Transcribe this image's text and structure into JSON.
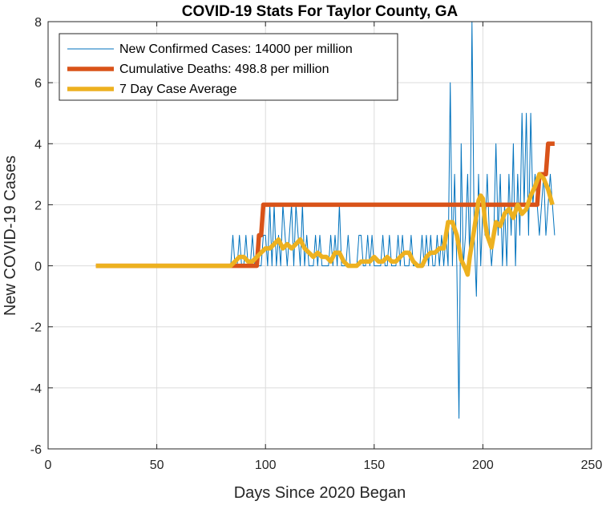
{
  "chart_data": {
    "type": "line",
    "title": "COVID-19 Stats For Taylor County, GA",
    "xlabel": "Days Since 2020 Began",
    "ylabel": "New COVID-19 Cases",
    "xlim": [
      0,
      250
    ],
    "ylim": [
      -6,
      8
    ],
    "xticks": [
      0,
      50,
      100,
      150,
      200,
      250
    ],
    "yticks": [
      -6,
      -4,
      -2,
      0,
      2,
      4,
      6,
      8
    ],
    "grid": true,
    "legend_position": "top-left",
    "series": [
      {
        "name": "New Confirmed Cases: 14000 per million",
        "color": "#0072BD",
        "x": [
          22,
          84,
          85,
          86,
          87,
          88,
          89,
          90,
          91,
          92,
          93,
          94,
          95,
          96,
          97,
          98,
          99,
          100,
          101,
          102,
          103,
          104,
          105,
          106,
          107,
          108,
          109,
          110,
          111,
          112,
          113,
          114,
          115,
          116,
          117,
          118,
          119,
          120,
          121,
          122,
          123,
          124,
          125,
          126,
          127,
          128,
          129,
          130,
          131,
          132,
          133,
          134,
          135,
          136,
          137,
          138,
          139,
          140,
          141,
          142,
          143,
          144,
          145,
          146,
          147,
          148,
          149,
          150,
          151,
          152,
          153,
          154,
          155,
          156,
          157,
          158,
          159,
          160,
          161,
          162,
          163,
          164,
          165,
          166,
          167,
          168,
          169,
          170,
          171,
          172,
          173,
          174,
          175,
          176,
          177,
          178,
          179,
          180,
          181,
          182,
          183,
          184,
          185,
          186,
          187,
          188,
          189,
          190,
          191,
          192,
          193,
          194,
          195,
          196,
          197,
          198,
          199,
          200,
          201,
          202,
          203,
          204,
          205,
          206,
          207,
          208,
          209,
          210,
          211,
          212,
          213,
          214,
          215,
          216,
          217,
          218,
          219,
          220,
          221,
          222,
          223,
          224,
          225,
          226,
          227,
          228,
          229,
          230,
          231,
          232,
          233
        ],
        "y": [
          0,
          0,
          1,
          0,
          0,
          1,
          0,
          0,
          1,
          0,
          0,
          1,
          0,
          0,
          0,
          0,
          1,
          1,
          0,
          2,
          0,
          2,
          0,
          1,
          0,
          2,
          1,
          0,
          1,
          2,
          0,
          2,
          1,
          0,
          2,
          0,
          1,
          0,
          0,
          0,
          1,
          0,
          1,
          0,
          0,
          0,
          0,
          1,
          0,
          1,
          0,
          2,
          0,
          0,
          0,
          1,
          0,
          0,
          0,
          0,
          1,
          1,
          0,
          0,
          1,
          0,
          1,
          0,
          0,
          0,
          0,
          1,
          0,
          0,
          1,
          0,
          0,
          0,
          1,
          0,
          1,
          0,
          0,
          0,
          1,
          0,
          0,
          0,
          0,
          1,
          0,
          1,
          0,
          1,
          0,
          0,
          1,
          0,
          1,
          0,
          1,
          0,
          6,
          0,
          3,
          0,
          -5,
          4,
          0,
          1,
          3,
          0,
          8,
          1,
          -1,
          3,
          0,
          2,
          1,
          3,
          1,
          0,
          1,
          4,
          1,
          3,
          0,
          2,
          0,
          3,
          1,
          4,
          0,
          3,
          1,
          5,
          2,
          5,
          1,
          5,
          2,
          3,
          2,
          1,
          2,
          3,
          1,
          2,
          3,
          2,
          1
        ]
      },
      {
        "name": "Cumulative Deaths: 498.8 per million",
        "color": "#D95319",
        "x": [
          22,
          96,
          97,
          98,
          99,
          225,
          226,
          227,
          228,
          229,
          230,
          233
        ],
        "y": [
          0,
          0,
          1,
          1,
          2,
          2,
          3,
          3,
          3,
          3,
          4,
          4
        ]
      },
      {
        "name": "7 Day Case Average",
        "color": "#EDB120",
        "x": [
          22,
          84,
          86,
          88,
          90,
          92,
          94,
          96,
          98,
          100,
          102,
          104,
          106,
          108,
          110,
          112,
          114,
          116,
          118,
          120,
          122,
          124,
          126,
          128,
          130,
          132,
          134,
          136,
          138,
          140,
          142,
          144,
          146,
          148,
          150,
          152,
          154,
          156,
          158,
          160,
          162,
          164,
          166,
          168,
          170,
          172,
          174,
          176,
          178,
          180,
          182,
          184,
          186,
          188,
          190,
          192,
          193,
          194,
          196,
          198,
          199,
          200,
          201,
          202,
          204,
          206,
          208,
          210,
          212,
          214,
          216,
          218,
          220,
          222,
          224,
          226,
          228,
          230,
          232
        ],
        "y": [
          0,
          0,
          0.14,
          0.29,
          0.29,
          0.14,
          0.14,
          0.29,
          0.43,
          0.57,
          0.57,
          0.71,
          0.86,
          0.57,
          0.71,
          0.57,
          0.71,
          0.86,
          0.57,
          0.43,
          0.29,
          0.43,
          0.29,
          0.29,
          0.14,
          0.43,
          0.43,
          0.14,
          0,
          0,
          0,
          0.14,
          0.14,
          0.14,
          0.29,
          0.14,
          0.14,
          0.29,
          0.14,
          0.14,
          0.29,
          0.43,
          0.43,
          0.14,
          0,
          0,
          0.29,
          0.43,
          0.43,
          0.57,
          0.57,
          1.43,
          1.43,
          1.0,
          0.2,
          -0.1,
          -0.29,
          0.3,
          1.2,
          2.14,
          2.3,
          2.2,
          1.43,
          1.0,
          0.6,
          1.43,
          1.3,
          1.71,
          1.86,
          1.57,
          2.0,
          1.7,
          1.86,
          2.3,
          2.6,
          3.0,
          2.86,
          2.5,
          2.0
        ]
      }
    ]
  }
}
